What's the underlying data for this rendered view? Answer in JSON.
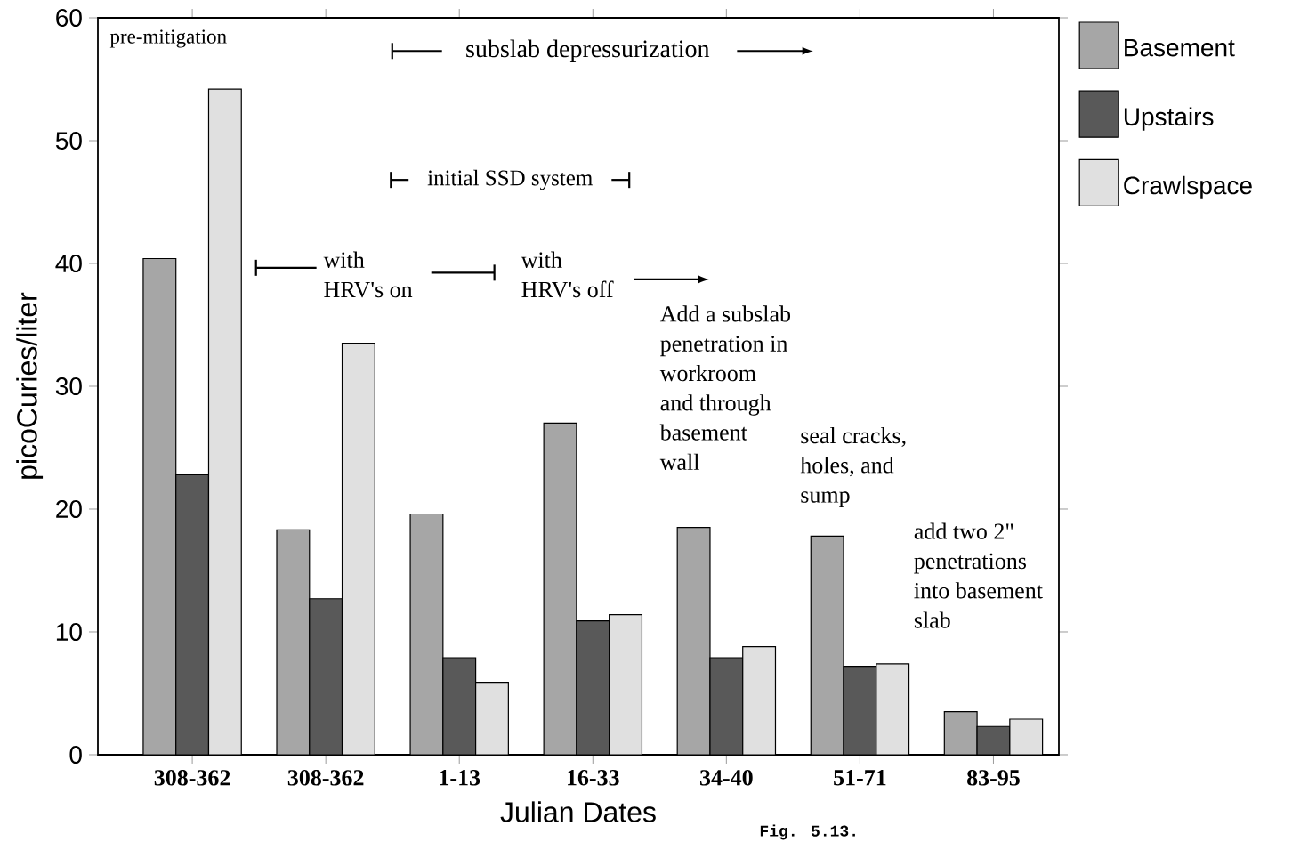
{
  "chart_data": {
    "type": "bar",
    "xlabel": "Julian Dates",
    "ylabel": "picoCuries/liter",
    "categories": [
      "308-362",
      "308-362",
      "1-13",
      "16-33",
      "34-40",
      "51-71",
      "83-95"
    ],
    "series": [
      {
        "name": "Basement",
        "color": "#a6a6a6",
        "values": [
          40.4,
          18.3,
          19.6,
          27.0,
          18.5,
          17.8,
          3.5
        ]
      },
      {
        "name": "Upstairs",
        "color": "#595959",
        "values": [
          22.8,
          12.7,
          7.9,
          10.9,
          7.9,
          7.2,
          2.3
        ]
      },
      {
        "name": "Crawlspace",
        "color": "#e0e0e0",
        "values": [
          54.2,
          33.5,
          5.9,
          11.4,
          8.8,
          7.4,
          2.9
        ]
      }
    ],
    "ylim": [
      0,
      60
    ],
    "yticks": [
      0,
      10,
      20,
      30,
      40,
      50,
      60
    ],
    "grid": false,
    "legend": "right",
    "annotations": [
      "pre-mitigation",
      "subslab depressurization",
      "initial SSD system",
      "with HRV's on",
      "with HRV's off",
      "Add a subslab penetration in workroom and through basement wall",
      "seal cracks, holes, and sump",
      "add two 2\" penetrations into basement slab",
      "Fig. 5.13."
    ]
  }
}
